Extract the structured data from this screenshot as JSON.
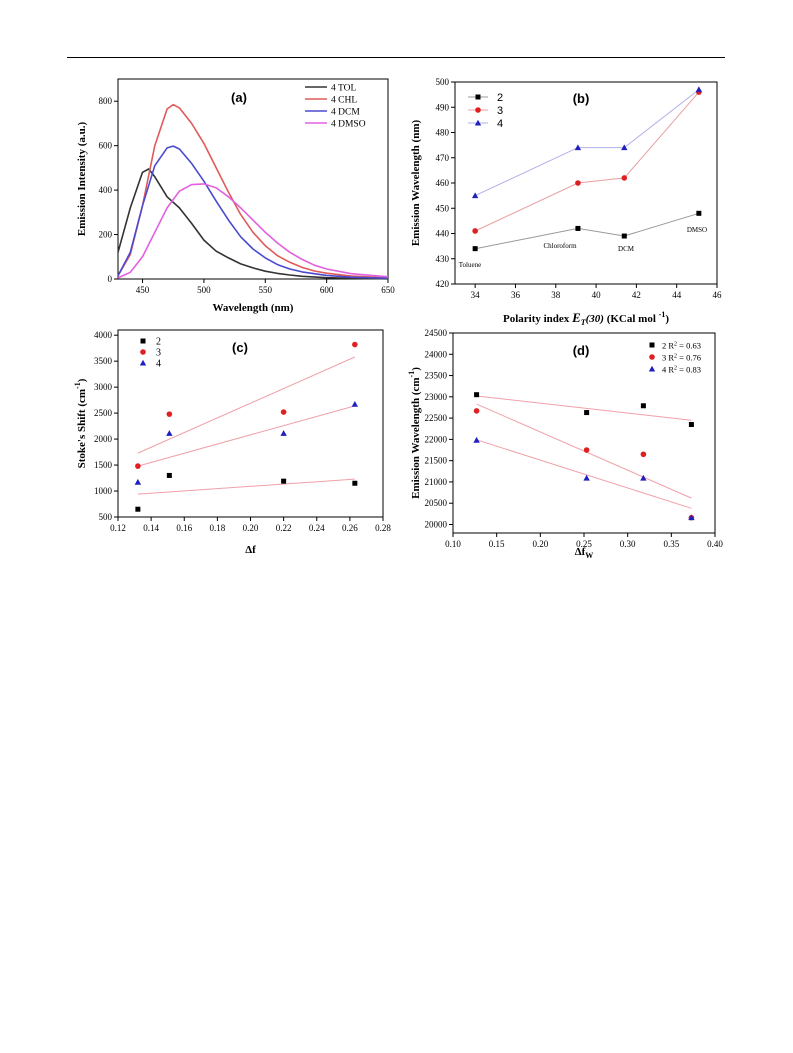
{
  "chart_data": [
    {
      "panel_label": "(a)",
      "type": "line",
      "xlabel": "Wavelength (nm)",
      "ylabel": "Emission Intensity (a.u.)",
      "xlim": [
        430,
        650
      ],
      "ylim": [
        0,
        900
      ],
      "xticks": [
        450,
        500,
        550,
        600,
        650
      ],
      "yticks": [
        0,
        200,
        400,
        600,
        800
      ],
      "legend_position": "top-right",
      "series": [
        {
          "name": "4 TOL",
          "color": "#333333",
          "x": [
            430,
            440,
            450,
            455,
            460,
            470,
            480,
            490,
            500,
            510,
            520,
            530,
            540,
            550,
            560,
            570,
            580,
            600,
            620,
            650
          ],
          "y": [
            120,
            320,
            480,
            495,
            460,
            370,
            320,
            250,
            175,
            125,
            95,
            68,
            50,
            35,
            25,
            18,
            12,
            6,
            3,
            1
          ]
        },
        {
          "name": "4 CHL",
          "color": "#e05a5a",
          "x": [
            430,
            440,
            450,
            460,
            470,
            475,
            480,
            490,
            500,
            510,
            520,
            530,
            540,
            550,
            560,
            570,
            580,
            590,
            600,
            620,
            650
          ],
          "y": [
            15,
            110,
            330,
            600,
            765,
            785,
            770,
            700,
            610,
            500,
            390,
            290,
            210,
            150,
            105,
            75,
            52,
            36,
            26,
            13,
            5
          ]
        },
        {
          "name": "4 DCM",
          "color": "#4a4ad0",
          "x": [
            430,
            440,
            450,
            460,
            470,
            475,
            480,
            490,
            500,
            510,
            520,
            530,
            540,
            550,
            560,
            570,
            580,
            600,
            620,
            650
          ],
          "y": [
            15,
            120,
            330,
            510,
            590,
            598,
            585,
            520,
            440,
            350,
            265,
            190,
            135,
            95,
            65,
            45,
            32,
            16,
            8,
            3
          ]
        },
        {
          "name": "4 DMSO",
          "color": "#e060e0",
          "x": [
            430,
            440,
            450,
            460,
            470,
            480,
            490,
            500,
            510,
            520,
            530,
            540,
            550,
            560,
            570,
            580,
            590,
            600,
            620,
            650
          ],
          "y": [
            5,
            30,
            100,
            210,
            320,
            395,
            425,
            428,
            410,
            370,
            320,
            265,
            210,
            162,
            120,
            88,
            62,
            45,
            24,
            10
          ]
        }
      ]
    },
    {
      "panel_label": "(b)",
      "type": "line",
      "xlabel_main": "Polarity index ",
      "xlabel_e": "E",
      "xlabel_t": "T",
      "xlabel_30": "(30)",
      "xlabel_unit": " (KCal mol ",
      "xlabel_sup": "-1",
      "xlabel_close": ")",
      "ylabel": "Emission Wavelength (nm)",
      "xlim": [
        33,
        46
      ],
      "ylim": [
        420,
        500
      ],
      "xticks": [
        34,
        36,
        38,
        40,
        42,
        44,
        46
      ],
      "yticks": [
        420,
        430,
        440,
        450,
        460,
        470,
        480,
        490,
        500
      ],
      "legend_position": "top-left",
      "x": [
        34,
        39.1,
        41.4,
        45.1
      ],
      "point_labels": [
        "Toluene",
        "Chloroform",
        "DCM",
        "DMSO"
      ],
      "series": [
        {
          "name": "2",
          "color": "#000000",
          "marker": "square",
          "line_color": "#999999",
          "values": [
            434,
            442,
            439,
            448
          ]
        },
        {
          "name": "3",
          "color": "#e02020",
          "marker": "circle",
          "line_color": "#e8a0a0",
          "values": [
            441,
            460,
            462,
            496
          ]
        },
        {
          "name": "4",
          "color": "#2020c0",
          "marker": "triangle",
          "line_color": "#b0b0e8",
          "values": [
            455,
            474,
            474,
            497
          ]
        }
      ]
    },
    {
      "panel_label": "(c)",
      "type": "scatter",
      "xlabel": "Δf",
      "ylabel_main": "Stoke's Shift (cm",
      "ylabel_sup": "-1",
      "ylabel_close": ")",
      "xlim": [
        0.12,
        0.28
      ],
      "ylim": [
        500,
        4100
      ],
      "xticks": [
        0.12,
        0.14,
        0.16,
        0.18,
        0.2,
        0.22,
        0.24,
        0.26,
        0.28
      ],
      "yticks": [
        500,
        1000,
        1500,
        2000,
        2500,
        3000,
        3500,
        4000
      ],
      "legend_position": "top-left",
      "series": [
        {
          "name": "2",
          "color": "#000000",
          "marker": "square",
          "x": [
            0.132,
            0.151,
            0.22,
            0.263
          ],
          "values": [
            650,
            1300,
            1190,
            1150
          ],
          "fit": [
            [
              0.132,
              940
            ],
            [
              0.263,
              1230
            ]
          ]
        },
        {
          "name": "3",
          "color": "#e02020",
          "marker": "circle",
          "x": [
            0.132,
            0.151,
            0.22,
            0.263
          ],
          "values": [
            1480,
            2480,
            2520,
            3820
          ],
          "fit": [
            [
              0.132,
              1730
            ],
            [
              0.263,
              3580
            ]
          ]
        },
        {
          "name": "4",
          "color": "#2020c0",
          "marker": "triangle",
          "x": [
            0.132,
            0.151,
            0.22,
            0.263
          ],
          "values": [
            1170,
            2110,
            2110,
            2670
          ],
          "fit": [
            [
              0.132,
              1480
            ],
            [
              0.263,
              2640
            ]
          ]
        }
      ],
      "fit_color": "#f0a0a8"
    },
    {
      "panel_label": "(d)",
      "type": "scatter",
      "xlabel_main": "Δf",
      "xlabel_sub": "W",
      "ylabel_main": "Emission Wavelength (cm",
      "ylabel_sup": "-1",
      "ylabel_close": ")",
      "xlim": [
        0.1,
        0.4
      ],
      "ylim": [
        19800,
        24500
      ],
      "xticks": [
        0.1,
        0.15,
        0.2,
        0.25,
        0.3,
        0.35,
        0.4
      ],
      "yticks": [
        20000,
        20500,
        21000,
        21500,
        22000,
        22500,
        23000,
        23500,
        24000,
        24500
      ],
      "legend_position": "top-right",
      "series": [
        {
          "name": "2",
          "r2_prefix": " R",
          "r2_sup": "2",
          "r2_value": " = 0.63",
          "color": "#000000",
          "marker": "square",
          "x": [
            0.127,
            0.253,
            0.318,
            0.373
          ],
          "values": [
            23050,
            22630,
            22790,
            22350
          ],
          "fit": [
            [
              0.127,
              23020
            ],
            [
              0.373,
              22450
            ]
          ]
        },
        {
          "name": "3",
          "r2_prefix": " R",
          "r2_sup": "2",
          "r2_value": " = 0.76",
          "color": "#e02020",
          "marker": "circle",
          "x": [
            0.127,
            0.253,
            0.318,
            0.373
          ],
          "values": [
            22670,
            21750,
            21650,
            20160
          ],
          "fit": [
            [
              0.127,
              22830
            ],
            [
              0.373,
              20620
            ]
          ]
        },
        {
          "name": "4",
          "r2_prefix": " R",
          "r2_sup": "2",
          "r2_value": " = 0.83",
          "color": "#2020c0",
          "marker": "triangle",
          "x": [
            0.127,
            0.253,
            0.318,
            0.373
          ],
          "values": [
            21980,
            21090,
            21090,
            20160
          ],
          "fit": [
            [
              0.127,
              21990
            ],
            [
              0.373,
              20380
            ]
          ]
        }
      ],
      "fit_color": "#f0a0a8"
    }
  ]
}
